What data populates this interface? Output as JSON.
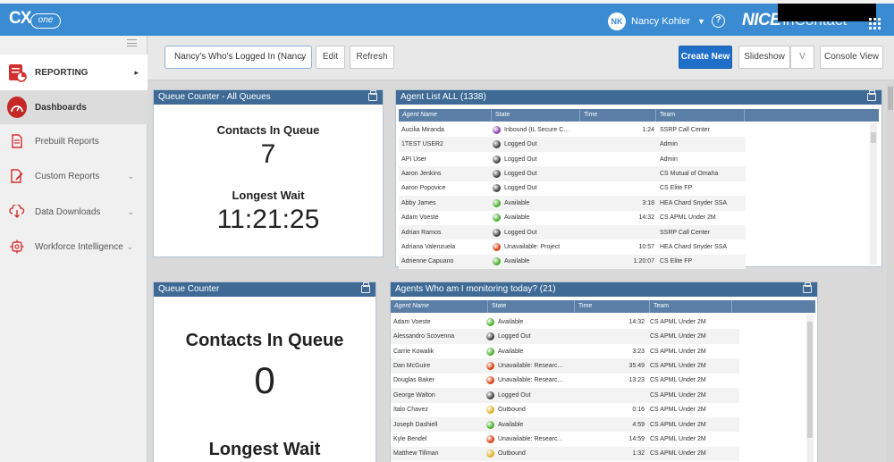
{
  "topbar": {
    "logo_cx": "CX",
    "logo_one": "one",
    "user_initials": "NK",
    "user_name": "Nancy Kohler",
    "brand_nice": "NICE",
    "brand_incontact": "inContact"
  },
  "sidebar": {
    "items": [
      {
        "label": "REPORTING"
      },
      {
        "label": "Dashboards"
      },
      {
        "label": "Prebuilt Reports"
      },
      {
        "label": "Custom Reports"
      },
      {
        "label": "Data Downloads"
      },
      {
        "label": "Workforce Intelligence"
      }
    ]
  },
  "toolbar": {
    "dashboard_select": "Nancy's Who's Logged In (Nancy",
    "edit": "Edit",
    "refresh": "Refresh",
    "create_new": "Create New",
    "slideshow": "Slideshow",
    "slideshow_toggle": "V",
    "console_view": "Console View"
  },
  "queue_all": {
    "title": "Queue Counter - All Queues",
    "contacts_label": "Contacts In Queue",
    "contacts_value": "7",
    "wait_label": "Longest Wait",
    "wait_value": "11:21:25"
  },
  "queue_counter": {
    "title": "Queue Counter",
    "contacts_label": "Contacts In Queue",
    "contacts_value": "0",
    "wait_label": "Longest Wait"
  },
  "agent_list": {
    "title": "Agent List ALL (1338)",
    "columns": [
      "Agent Name",
      "State",
      "Time",
      "Team"
    ],
    "rows": [
      {
        "name": "Aucilia Miranda",
        "state": "Inbound (IL Secure C...",
        "time": "1:24",
        "team": "SSRP Call Center",
        "color": "#8e44ad"
      },
      {
        "name": "1TEST USER2",
        "state": "Logged Out",
        "time": "",
        "team": "Admin",
        "color": "#444444"
      },
      {
        "name": "API User",
        "state": "Logged Out",
        "time": "",
        "team": "Admin",
        "color": "#444444"
      },
      {
        "name": "Aaron Jenkins",
        "state": "Logged Out",
        "time": "",
        "team": "CS Mutual of Omaha",
        "color": "#444444"
      },
      {
        "name": "Aaron Popovice",
        "state": "Logged Out",
        "time": "",
        "team": "CS Elite FP",
        "color": "#444444"
      },
      {
        "name": "Abby James",
        "state": "Available",
        "time": "3:18",
        "team": "HEA Chard Snyder SSA",
        "color": "#4caf30"
      },
      {
        "name": "Adam Voeste",
        "state": "Available",
        "time": "14:32",
        "team": "CS APML Under 2M",
        "color": "#4caf30"
      },
      {
        "name": "Adrian Ramos",
        "state": "Logged Out",
        "time": "",
        "team": "SSRP Call Center",
        "color": "#444444"
      },
      {
        "name": "Adriana Valenzuela",
        "state": "Unavailable: Project",
        "time": "10:57",
        "team": "HEA Chard Snyder SSA",
        "color": "#d84315"
      },
      {
        "name": "Adrienne Capuano",
        "state": "Available",
        "time": "1:20:07",
        "team": "CS Elite FP",
        "color": "#4caf30"
      }
    ]
  },
  "monitoring": {
    "title": "Agents Who am I monitoring today? (21)",
    "columns": [
      "Agent Name",
      "State",
      "Time",
      "Team"
    ],
    "rows": [
      {
        "name": "Adam Voeste",
        "state": "Available",
        "time": "14:32",
        "team": "CS APML Under 2M",
        "color": "#4caf30"
      },
      {
        "name": "Alessandro Scovenna",
        "state": "Logged Out",
        "time": "",
        "team": "CS APML Under 2M",
        "color": "#444444"
      },
      {
        "name": "Carrie Kowalik",
        "state": "Available",
        "time": "3:23",
        "team": "CS APML Under 2M",
        "color": "#4caf30"
      },
      {
        "name": "Dan McGuire",
        "state": "Unavailable: Researc...",
        "time": "35:49",
        "team": "CS APML Under 2M",
        "color": "#d84315"
      },
      {
        "name": "Douglas Baker",
        "state": "Unavailable: Researc...",
        "time": "13:23",
        "team": "CS APML Under 2M",
        "color": "#d84315"
      },
      {
        "name": "George Walton",
        "state": "Logged Out",
        "time": "",
        "team": "CS APML Under 2M",
        "color": "#444444"
      },
      {
        "name": "Italo Chavez",
        "state": "Outbound",
        "time": "0:16",
        "team": "CS APML Under 2M",
        "color": "#e0b020"
      },
      {
        "name": "Joseph Dashiell",
        "state": "Available",
        "time": "4:59",
        "team": "CS APML Under 2M",
        "color": "#4caf30"
      },
      {
        "name": "Kyle Bendel",
        "state": "Unavailable: Researc...",
        "time": "14:59",
        "team": "CS APML Under 2M",
        "color": "#d84315"
      },
      {
        "name": "Matthew Tillman",
        "state": "Outbound",
        "time": "1:32",
        "team": "CS APML Under 2M",
        "color": "#e0b020"
      }
    ]
  }
}
